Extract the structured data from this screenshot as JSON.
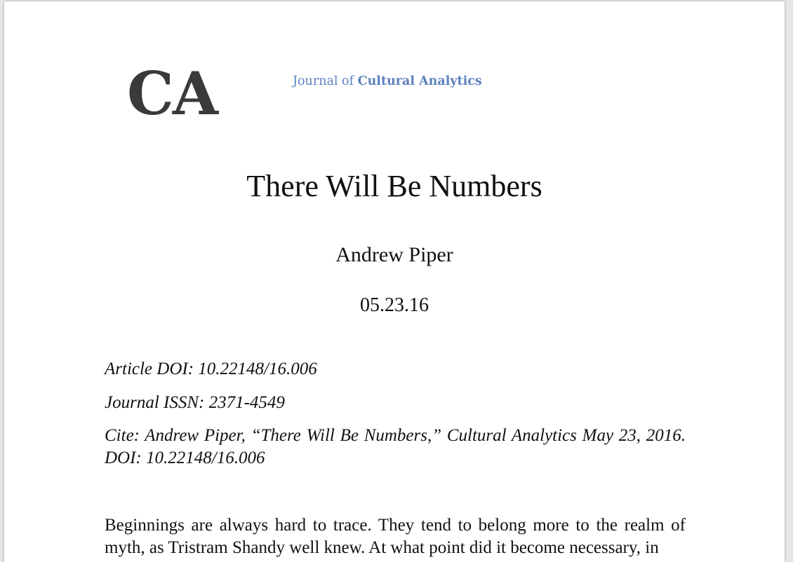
{
  "logo": {
    "text": "CA",
    "color": "#3a3a3a"
  },
  "journal": {
    "prefix": "Journal of",
    "name": "Cultural Analytics",
    "color": "#5b7fbf"
  },
  "article": {
    "title": "There Will Be Numbers",
    "author": "Andrew Piper",
    "date": "05.23.16"
  },
  "metadata": {
    "doi": "Article DOI: 10.22148/16.006",
    "issn": "Journal ISSN: 2371-4549",
    "cite": "Cite: Andrew Piper, “There Will Be Numbers,” Cultural Analytics May 23, 2016. DOI: 10.22148/16.006"
  },
  "body": {
    "paragraph_1": "Beginnings are always hard to trace. They tend to belong more to the realm of myth, as Tristram Shandy well knew. At what point did it become necessary, in"
  }
}
